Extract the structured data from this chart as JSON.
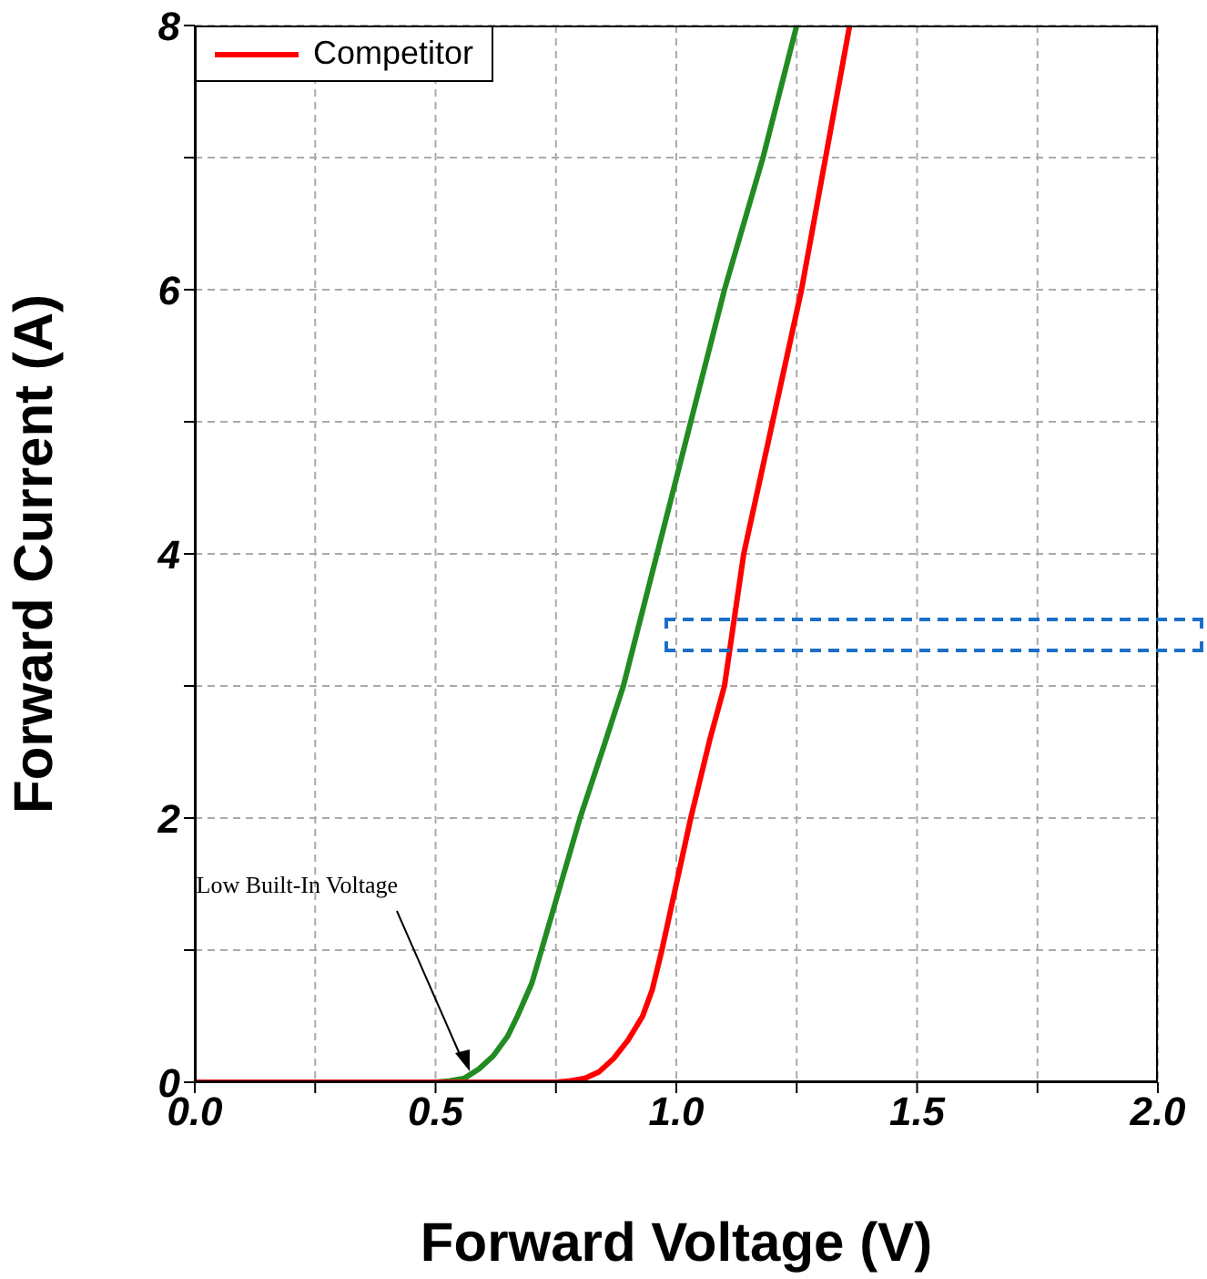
{
  "chart_data": {
    "type": "line",
    "xlabel": "Forward Voltage (V)",
    "ylabel": "Forward Current (A)",
    "xlim": [
      0,
      2
    ],
    "ylim": [
      0,
      8
    ],
    "xticks": [
      {
        "value": 0,
        "label": "0.0"
      },
      {
        "value": 0.25,
        "label": null
      },
      {
        "value": 0.5,
        "label": "0.5"
      },
      {
        "value": 0.75,
        "label": null
      },
      {
        "value": 1,
        "label": "1.0"
      },
      {
        "value": 1.25,
        "label": null
      },
      {
        "value": 1.5,
        "label": "1.5"
      },
      {
        "value": 1.75,
        "label": null
      },
      {
        "value": 2,
        "label": "2.0"
      }
    ],
    "yticks": [
      0,
      {
        "value": 1,
        "label": null
      },
      2,
      {
        "value": 3,
        "label": null
      },
      4,
      {
        "value": 5,
        "label": null
      },
      6,
      {
        "value": 7,
        "label": null
      },
      8
    ],
    "grid": true,
    "legend": "top left",
    "marker": "none",
    "line_style": "solid",
    "series": [
      {
        "color": "#228b22",
        "x": [
          0,
          0.3,
          0.5,
          0.53,
          0.56,
          0.59,
          0.62,
          0.65,
          0.67,
          0.7,
          0.72,
          0.76,
          0.8,
          0.85,
          0.89,
          0.96,
          1.03,
          1.1,
          1.18,
          1.25
        ],
        "values": [
          0,
          0,
          0,
          0.01,
          0.03,
          0.1,
          0.2,
          0.35,
          0.5,
          0.75,
          1,
          1.5,
          2,
          2.55,
          3,
          4,
          5,
          6,
          7,
          8
        ]
      },
      {
        "name": "Competitor",
        "color": "#ff0000",
        "x": [
          0,
          0.5,
          0.75,
          0.78,
          0.81,
          0.84,
          0.87,
          0.9,
          0.93,
          0.95,
          0.97,
          1.0,
          1.03,
          1.07,
          1.1,
          1.14,
          1.2,
          1.26,
          1.31,
          1.36
        ],
        "values": [
          0,
          0,
          0,
          0.01,
          0.03,
          0.08,
          0.18,
          0.32,
          0.5,
          0.7,
          1,
          1.5,
          2,
          2.6,
          3,
          4,
          5,
          6,
          7,
          8
        ]
      }
    ],
    "annotations": [
      {
        "text": "Low Built-In Voltage",
        "x": 0.57,
        "y": 0.05
      }
    ]
  }
}
